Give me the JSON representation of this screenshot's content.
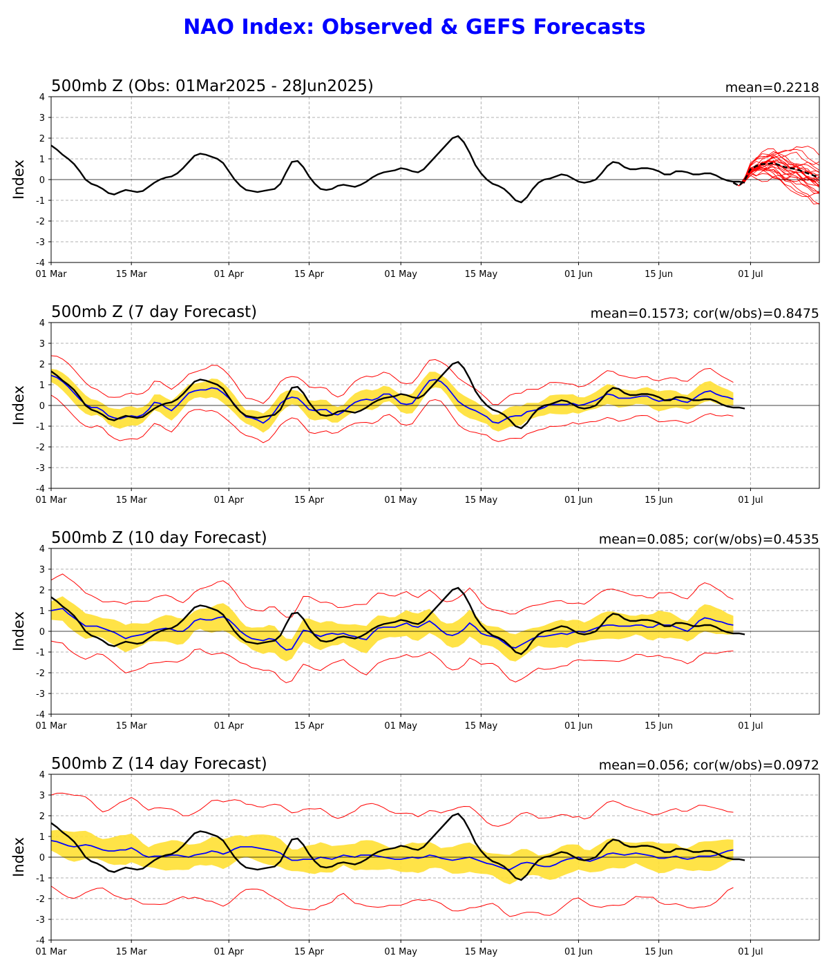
{
  "title": "NAO Index: Observed & GEFS Forecasts",
  "colors": {
    "title": "#0000ff",
    "observed": "#000000",
    "ensemble_mean": "#0000ff",
    "spread_band": "#ffe033",
    "ensemble_members": "#ff0000",
    "grid": "#b0b0b0"
  },
  "x_ticks": [
    "01 Mar",
    "15 Mar",
    "01 Apr",
    "15 Apr",
    "01 May",
    "15 May",
    "01 Jun",
    "15 Jun",
    "01 Jul"
  ],
  "chart_data": [
    {
      "type": "line",
      "title": "500mb Z (Obs: 01Mar2025 - 28Jun2025)",
      "stat": "mean=0.2218",
      "ylabel": "Index",
      "ylim": [
        -4,
        4
      ],
      "yticks": [
        -4,
        -3,
        -2,
        -1,
        0,
        1,
        2,
        3,
        4
      ],
      "grid": true,
      "observed": [
        1.65,
        1.45,
        1.2,
        1.0,
        0.75,
        0.4,
        0.0,
        -0.2,
        -0.3,
        -0.45,
        -0.65,
        -0.72,
        -0.6,
        -0.5,
        -0.55,
        -0.6,
        -0.55,
        -0.35,
        -0.15,
        0.0,
        0.1,
        0.15,
        0.3,
        0.55,
        0.85,
        1.15,
        1.25,
        1.2,
        1.1,
        1.0,
        0.8,
        0.4,
        0.0,
        -0.3,
        -0.5,
        -0.55,
        -0.6,
        -0.55,
        -0.5,
        -0.45,
        -0.2,
        0.35,
        0.85,
        0.9,
        0.6,
        0.15,
        -0.2,
        -0.45,
        -0.5,
        -0.45,
        -0.3,
        -0.25,
        -0.3,
        -0.35,
        -0.25,
        -0.1,
        0.1,
        0.25,
        0.35,
        0.4,
        0.45,
        0.55,
        0.5,
        0.4,
        0.35,
        0.5,
        0.8,
        1.1,
        1.4,
        1.7,
        2.0,
        2.1,
        1.8,
        1.3,
        0.7,
        0.3,
        0.0,
        -0.2,
        -0.3,
        -0.45,
        -0.7,
        -1.0,
        -1.1,
        -0.85,
        -0.45,
        -0.15,
        0.0,
        0.05,
        0.15,
        0.25,
        0.2,
        0.05,
        -0.1,
        -0.15,
        -0.1,
        0.0,
        0.3,
        0.65,
        0.85,
        0.8,
        0.6,
        0.5,
        0.5,
        0.55,
        0.55,
        0.5,
        0.4,
        0.25,
        0.25,
        0.4,
        0.4,
        0.35,
        0.25,
        0.25,
        0.3,
        0.3,
        0.2,
        0.05,
        -0.05,
        -0.1,
        -0.1,
        -0.15
      ],
      "ensemble_mean_forecast": {
        "start_day": 119,
        "values": [
          -0.15,
          -0.3,
          0.0,
          0.5,
          0.65,
          0.75,
          0.75,
          0.8,
          0.7,
          0.6,
          0.55,
          0.5,
          0.4,
          0.3,
          0.2,
          0.1
        ]
      },
      "ensemble_members": 25
    },
    {
      "type": "line",
      "title": "500mb Z (7 day Forecast)",
      "stat": "mean=0.1573; cor(w/obs)=0.8475",
      "ylabel": "Index",
      "ylim": [
        -4,
        4
      ],
      "yticks": [
        -4,
        -3,
        -2,
        -1,
        0,
        1,
        2,
        3,
        4
      ],
      "grid": true,
      "lead_days": 7,
      "forecast_end_day": 126,
      "mean": [
        1.45,
        1.35,
        1.15,
        0.9,
        0.6,
        0.3,
        0.05,
        -0.1,
        -0.1,
        -0.25,
        -0.5,
        -0.6,
        -0.65,
        -0.55,
        -0.5,
        -0.55,
        -0.45,
        -0.2,
        0.15,
        0.1,
        -0.1,
        -0.25,
        0.0,
        0.3,
        0.6,
        0.7,
        0.75,
        0.75,
        0.85,
        0.8,
        0.6,
        0.35,
        0.05,
        -0.3,
        -0.55,
        -0.6,
        -0.7,
        -0.85,
        -0.65,
        -0.3,
        0.1,
        0.3,
        0.4,
        0.35,
        0.1,
        -0.2,
        -0.25,
        -0.2,
        -0.2,
        -0.4,
        -0.45,
        -0.3,
        -0.05,
        0.15,
        0.25,
        0.3,
        0.25,
        0.35,
        0.55,
        0.55,
        0.35,
        0.1,
        0.05,
        0.1,
        0.45,
        0.85,
        1.2,
        1.25,
        1.15,
        0.9,
        0.55,
        0.2,
        0.0,
        -0.15,
        -0.25,
        -0.4,
        -0.55,
        -0.8,
        -0.85,
        -0.7,
        -0.55,
        -0.5,
        -0.5,
        -0.3,
        -0.25,
        -0.2,
        -0.1,
        0.05,
        0.05,
        0.05,
        0.05,
        0.1,
        0.0,
        0.05,
        0.15,
        0.25,
        0.4,
        0.55,
        0.5,
        0.35,
        0.35,
        0.35,
        0.4,
        0.45,
        0.45,
        0.3,
        0.2,
        0.25,
        0.3,
        0.3,
        0.2,
        0.15,
        0.3,
        0.5,
        0.65,
        0.7,
        0.55,
        0.45,
        0.4,
        0.3,
        0.1,
        0.0,
        0.3,
        0.55,
        0.7,
        0.7
      ],
      "spread": 0.4,
      "member_spread": 0.55
    },
    {
      "type": "line",
      "title": "500mb Z (10 day Forecast)",
      "stat": "mean=0.085; cor(w/obs)=0.4535",
      "ylabel": "Index",
      "ylim": [
        -4,
        4
      ],
      "yticks": [
        -4,
        -3,
        -2,
        -1,
        0,
        1,
        2,
        3,
        4
      ],
      "grid": true,
      "lead_days": 10,
      "forecast_end_day": 129,
      "mean": [
        1.0,
        1.05,
        1.1,
        0.85,
        0.65,
        0.45,
        0.25,
        0.25,
        0.25,
        0.15,
        0.05,
        -0.05,
        -0.2,
        -0.35,
        -0.25,
        -0.2,
        -0.15,
        -0.05,
        0.05,
        0.1,
        0.15,
        0.1,
        0.0,
        0.0,
        0.2,
        0.5,
        0.6,
        0.55,
        0.55,
        0.65,
        0.7,
        0.55,
        0.3,
        0.0,
        -0.2,
        -0.35,
        -0.4,
        -0.45,
        -0.35,
        -0.4,
        -0.7,
        -0.9,
        -0.85,
        -0.4,
        0.05,
        0.0,
        -0.15,
        -0.25,
        -0.15,
        -0.1,
        -0.15,
        -0.1,
        -0.2,
        -0.25,
        -0.35,
        -0.4,
        -0.1,
        0.15,
        0.2,
        0.2,
        0.2,
        0.3,
        0.4,
        0.25,
        0.2,
        0.35,
        0.5,
        0.3,
        0.05,
        -0.15,
        -0.2,
        -0.1,
        0.1,
        0.4,
        0.2,
        -0.1,
        -0.2,
        -0.25,
        -0.35,
        -0.55,
        -0.75,
        -0.8,
        -0.65,
        -0.5,
        -0.35,
        -0.25,
        -0.25,
        -0.2,
        -0.15,
        -0.1,
        -0.15,
        -0.05,
        0.0,
        -0.05,
        0.05,
        0.15,
        0.25,
        0.3,
        0.3,
        0.25,
        0.25,
        0.25,
        0.3,
        0.3,
        0.2,
        0.2,
        0.35,
        0.3,
        0.3,
        0.2,
        0.1,
        0.0,
        0.2,
        0.5,
        0.65,
        0.6,
        0.5,
        0.45,
        0.35,
        0.3,
        0.3,
        0.3,
        0.4,
        0.5,
        0.55,
        0.55
      ],
      "spread": 0.55,
      "member_spread": 0.9
    },
    {
      "type": "line",
      "title": "500mb Z (14 day Forecast)",
      "stat": "mean=0.056; cor(w/obs)=0.0972",
      "ylabel": "Index",
      "ylim": [
        -4,
        4
      ],
      "yticks": [
        -4,
        -3,
        -2,
        -1,
        0,
        1,
        2,
        3,
        4
      ],
      "grid": true,
      "lead_days": 14,
      "forecast_end_day": 133,
      "mean": [
        0.8,
        0.75,
        0.65,
        0.55,
        0.5,
        0.55,
        0.6,
        0.55,
        0.45,
        0.35,
        0.3,
        0.3,
        0.35,
        0.35,
        0.45,
        0.3,
        0.1,
        0.0,
        0.05,
        0.05,
        0.05,
        0.1,
        0.1,
        0.05,
        0.0,
        0.1,
        0.15,
        0.2,
        0.3,
        0.25,
        0.15,
        0.25,
        0.4,
        0.5,
        0.5,
        0.5,
        0.45,
        0.4,
        0.35,
        0.3,
        0.2,
        0.0,
        -0.15,
        -0.15,
        -0.1,
        -0.1,
        -0.1,
        0.0,
        -0.05,
        -0.1,
        0.0,
        0.1,
        0.05,
        0.0,
        0.1,
        0.1,
        0.1,
        0.05,
        0.0,
        -0.05,
        -0.1,
        -0.1,
        -0.05,
        0.0,
        -0.05,
        0.0,
        0.1,
        0.05,
        -0.05,
        -0.1,
        -0.15,
        -0.1,
        -0.05,
        0.0,
        -0.1,
        -0.2,
        -0.3,
        -0.35,
        -0.45,
        -0.55,
        -0.6,
        -0.45,
        -0.3,
        -0.25,
        -0.3,
        -0.4,
        -0.45,
        -0.45,
        -0.35,
        -0.2,
        -0.1,
        -0.05,
        0.0,
        -0.15,
        -0.2,
        -0.1,
        0.0,
        0.15,
        0.2,
        0.15,
        0.1,
        0.15,
        0.2,
        0.15,
        0.1,
        0.05,
        -0.05,
        -0.05,
        0.0,
        0.05,
        -0.05,
        -0.1,
        -0.05,
        0.05,
        0.05,
        0.05,
        0.1,
        0.2,
        0.3,
        0.35,
        0.4,
        0.4,
        0.35,
        0.3,
        0.3,
        0.25,
        0.2,
        0.15,
        0.1,
        0.15,
        0.2,
        0.3,
        0.3
      ],
      "spread": 0.6,
      "member_spread": 1.5
    }
  ]
}
